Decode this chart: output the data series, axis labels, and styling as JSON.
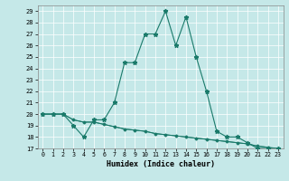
{
  "xlabel": "Humidex (Indice chaleur)",
  "x_ticks": [
    0,
    1,
    2,
    3,
    4,
    5,
    6,
    7,
    8,
    9,
    10,
    11,
    12,
    13,
    14,
    15,
    16,
    17,
    18,
    19,
    20,
    21,
    22,
    23
  ],
  "ylim": [
    17,
    29.5
  ],
  "xlim": [
    -0.5,
    23.5
  ],
  "y_ticks": [
    17,
    18,
    19,
    20,
    21,
    22,
    23,
    24,
    25,
    26,
    27,
    28,
    29
  ],
  "bg_color": "#c5e8e8",
  "line_color": "#1a7a6a",
  "series1_x": [
    0,
    1,
    2,
    3,
    4,
    5,
    6,
    7,
    8,
    9,
    10,
    11,
    12,
    13,
    14,
    15,
    16,
    17,
    18,
    19,
    20,
    21,
    22,
    23
  ],
  "series1_y": [
    20,
    20,
    20,
    19,
    18,
    19.5,
    19.5,
    21,
    24.5,
    24.5,
    27,
    27,
    29,
    26,
    28.5,
    25,
    22,
    18.5,
    18,
    18,
    17.5,
    17,
    17,
    17
  ],
  "series2_x": [
    0,
    1,
    2,
    3,
    4,
    5,
    6,
    7,
    8,
    9,
    10,
    11,
    12,
    13,
    14,
    15,
    16,
    17,
    18,
    19,
    20,
    21,
    22,
    23
  ],
  "series2_y": [
    20,
    20,
    20,
    19.5,
    19.3,
    19.3,
    19.1,
    18.9,
    18.7,
    18.6,
    18.5,
    18.3,
    18.2,
    18.1,
    18.0,
    17.9,
    17.8,
    17.7,
    17.6,
    17.5,
    17.4,
    17.2,
    17.1,
    17.0
  ],
  "series3_x": [
    0,
    1,
    2,
    3,
    4,
    5,
    6,
    7,
    8,
    9,
    10,
    11,
    12,
    13,
    14,
    15,
    16,
    17,
    18,
    19,
    20,
    21,
    22,
    23
  ],
  "series3_y": [
    20,
    20,
    20,
    19.5,
    19.3,
    19.3,
    19.1,
    18.9,
    18.7,
    18.6,
    18.5,
    18.3,
    18.2,
    18.1,
    18.0,
    17.9,
    17.8,
    17.7,
    17.6,
    17.5,
    17.4,
    17.2,
    17.1,
    16.9
  ]
}
